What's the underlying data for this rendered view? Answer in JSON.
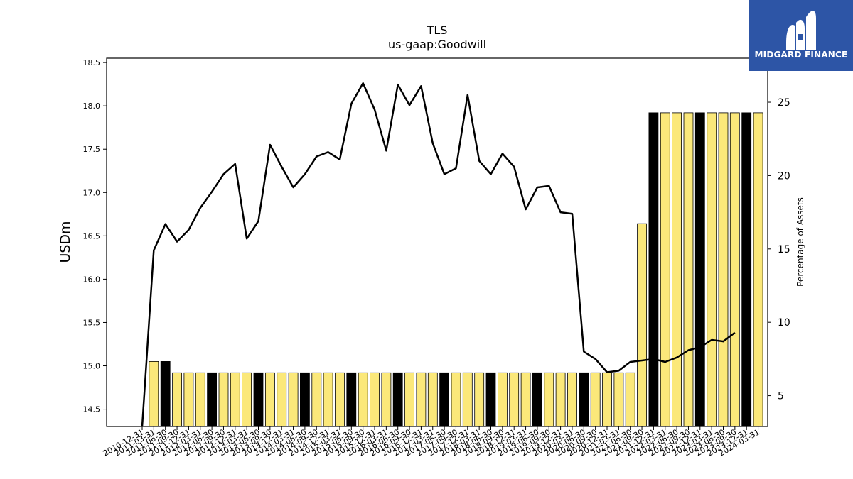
{
  "chart_data": {
    "type": "bar",
    "title": "TLS",
    "subtitle": "us-gaap:Goodwill",
    "ylabel": "USDm",
    "y2label": "Percentage of Assets",
    "ylim": [
      14.3,
      18.55
    ],
    "y2lim": [
      2.9,
      28.0
    ],
    "yticks": [
      "14.5",
      "15.0",
      "15.5",
      "16.0",
      "16.5",
      "17.0",
      "17.5",
      "18.0",
      "18.5"
    ],
    "y2ticks": [
      "5",
      "10",
      "15",
      "20",
      "25"
    ],
    "categories": [
      "2010-12-31",
      "2011-03-31",
      "2011-06-30",
      "2011-09-30",
      "2011-12-31",
      "2012-03-31",
      "2012-06-30",
      "2012-09-30",
      "2012-12-31",
      "2013-03-31",
      "2013-06-30",
      "2013-09-30",
      "2013-12-31",
      "2014-03-31",
      "2014-06-30",
      "2014-09-30",
      "2014-12-31",
      "2015-03-31",
      "2015-06-30",
      "2015-09-30",
      "2015-12-31",
      "2016-03-31",
      "2016-06-30",
      "2016-09-30",
      "2016-12-31",
      "2017-03-31",
      "2017-06-30",
      "2017-09-30",
      "2017-12-31",
      "2018-03-31",
      "2018-06-30",
      "2018-09-30",
      "2018-12-31",
      "2019-03-31",
      "2019-06-30",
      "2019-09-30",
      "2019-12-31",
      "2020-03-31",
      "2020-06-30",
      "2020-09-30",
      "2020-12-31",
      "2021-03-31",
      "2021-06-30",
      "2021-09-30",
      "2021-12-31",
      "2022-03-31",
      "2022-06-30",
      "2022-09-30",
      "2022-12-31",
      "2023-03-31",
      "2023-06-30",
      "2023-09-30",
      "2023-12-31",
      "2024-03-31"
    ],
    "series": [
      {
        "kind": "bar",
        "values": [
          null,
          15.05,
          15.05,
          14.92,
          14.92,
          14.92,
          14.92,
          14.92,
          14.92,
          14.92,
          14.92,
          14.92,
          14.92,
          14.92,
          14.92,
          14.92,
          14.92,
          14.92,
          14.92,
          14.92,
          14.92,
          14.92,
          14.92,
          14.92,
          14.92,
          14.92,
          14.92,
          14.92,
          14.92,
          14.92,
          14.92,
          14.92,
          14.92,
          14.92,
          14.92,
          14.92,
          14.92,
          14.92,
          14.92,
          14.92,
          14.92,
          14.92,
          14.92,
          16.64,
          17.92,
          17.92,
          17.92,
          17.92,
          17.92,
          17.92,
          17.92,
          17.92,
          17.92,
          17.92
        ],
        "highlight": [
          false,
          false,
          true,
          false,
          false,
          false,
          true,
          false,
          false,
          false,
          true,
          false,
          false,
          false,
          true,
          false,
          false,
          false,
          true,
          false,
          false,
          false,
          true,
          false,
          false,
          false,
          true,
          false,
          false,
          false,
          true,
          false,
          false,
          false,
          true,
          false,
          false,
          false,
          true,
          false,
          false,
          false,
          false,
          false,
          true,
          false,
          false,
          false,
          true,
          false,
          false,
          false,
          true,
          false
        ]
      },
      {
        "kind": "line",
        "axis": "right",
        "values": [
          2.9,
          14.9,
          16.7,
          15.5,
          16.3,
          17.8,
          18.9,
          20.1,
          20.8,
          15.7,
          16.9,
          22.1,
          20.6,
          19.2,
          20.1,
          21.3,
          21.6,
          21.1,
          24.9,
          26.3,
          24.5,
          21.7,
          26.2,
          24.8,
          26.1,
          22.2,
          20.1,
          20.5,
          25.5,
          21.0,
          20.1,
          21.5,
          20.6,
          17.7,
          19.2,
          19.3,
          17.5,
          17.4,
          8.0,
          7.5,
          6.6,
          6.7,
          7.3,
          7.4,
          7.5,
          7.3,
          7.6,
          8.1,
          8.3,
          8.8,
          8.7,
          9.3,
          null,
          null
        ]
      }
    ],
    "colors": {
      "bar": "#fbe87a",
      "bar_highlight": "#000000",
      "bar_edge": "#000000",
      "line": "#000000"
    },
    "grid": false
  },
  "logo": {
    "text": "MIDGARD FINANCE",
    "background": "#2d55a6"
  }
}
